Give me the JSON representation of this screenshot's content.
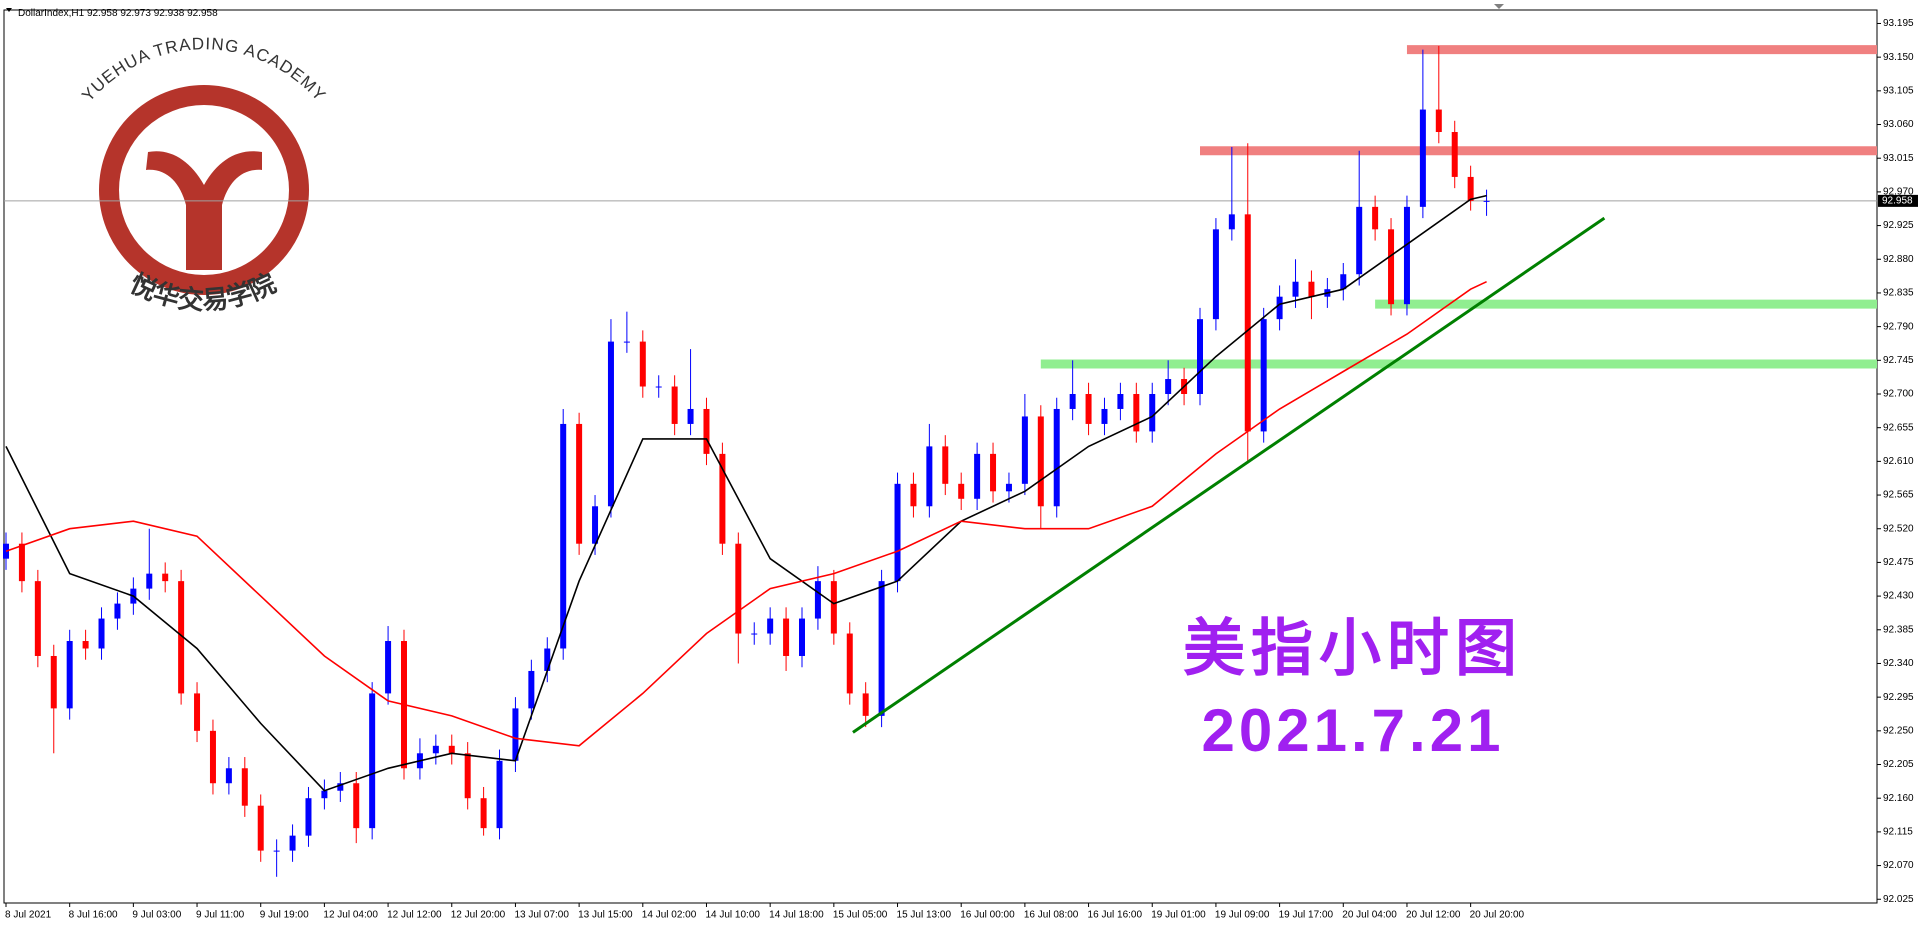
{
  "chart_data": {
    "type": "candlestick",
    "symbol": "DollarIndex,H1",
    "x": [
      "8 Jul 2021",
      null,
      null,
      null,
      "8 Jul 16:00",
      null,
      null,
      null,
      "9 Jul 03:00",
      null,
      null,
      null,
      "9 Jul 11:00",
      null,
      null,
      null,
      "9 Jul 19:00",
      null,
      null,
      null,
      "12 Jul 04:00",
      null,
      null,
      null,
      "12 Jul 12:00",
      null,
      null,
      null,
      "12 Jul 20:00",
      null,
      null,
      null,
      "13 Jul 07:00",
      null,
      null,
      null,
      "13 Jul 15:00",
      null,
      null,
      null,
      "14 Jul 02:00",
      null,
      null,
      null,
      "14 Jul 10:00",
      null,
      null,
      null,
      "14 Jul 18:00",
      null,
      null,
      null,
      "15 Jul 05:00",
      null,
      null,
      null,
      "15 Jul 13:00",
      null,
      null,
      null,
      "16 Jul 00:00",
      null,
      null,
      null,
      "16 Jul 08:00",
      null,
      null,
      null,
      "16 Jul 16:00",
      null,
      null,
      null,
      "19 Jul 01:00",
      null,
      null,
      null,
      "19 Jul 09:00",
      null,
      null,
      null,
      "19 Jul 17:00",
      null,
      null,
      null,
      "20 Jul 04:00",
      null,
      null,
      null,
      "20 Jul 12:00",
      null,
      null,
      null,
      "20 Jul 20:00",
      null
    ],
    "ohlc": [
      [
        92.48,
        92.515,
        92.465,
        92.5
      ],
      [
        92.5,
        92.515,
        92.435,
        92.45
      ],
      [
        92.45,
        92.465,
        92.335,
        92.35
      ],
      [
        92.35,
        92.365,
        92.22,
        92.28
      ],
      [
        92.28,
        92.385,
        92.265,
        92.37
      ],
      [
        92.37,
        92.385,
        92.345,
        92.36
      ],
      [
        92.36,
        92.415,
        92.345,
        92.4
      ],
      [
        92.4,
        92.435,
        92.385,
        92.42
      ],
      [
        92.42,
        92.455,
        92.405,
        92.44
      ],
      [
        92.44,
        92.52,
        92.425,
        92.46
      ],
      [
        92.46,
        92.475,
        92.435,
        92.45
      ],
      [
        92.45,
        92.465,
        92.285,
        92.3
      ],
      [
        92.3,
        92.315,
        92.235,
        92.25
      ],
      [
        92.25,
        92.265,
        92.165,
        92.18
      ],
      [
        92.18,
        92.215,
        92.165,
        92.2
      ],
      [
        92.2,
        92.215,
        92.135,
        92.15
      ],
      [
        92.15,
        92.165,
        92.075,
        92.09
      ],
      [
        92.09,
        92.105,
        92.055,
        92.09
      ],
      [
        92.09,
        92.125,
        92.075,
        92.11
      ],
      [
        92.11,
        92.175,
        92.095,
        92.16
      ],
      [
        92.16,
        92.185,
        92.145,
        92.17
      ],
      [
        92.17,
        92.195,
        92.155,
        92.18
      ],
      [
        92.18,
        92.195,
        92.1,
        92.12
      ],
      [
        92.12,
        92.315,
        92.105,
        92.3
      ],
      [
        92.3,
        92.39,
        92.285,
        92.37
      ],
      [
        92.37,
        92.385,
        92.185,
        92.2
      ],
      [
        92.2,
        92.24,
        92.185,
        92.22
      ],
      [
        92.22,
        92.245,
        92.205,
        92.23
      ],
      [
        92.23,
        92.245,
        92.205,
        92.22
      ],
      [
        92.22,
        92.235,
        92.145,
        92.16
      ],
      [
        92.16,
        92.175,
        92.11,
        92.12
      ],
      [
        92.12,
        92.225,
        92.105,
        92.21
      ],
      [
        92.21,
        92.295,
        92.195,
        92.28
      ],
      [
        92.28,
        92.345,
        92.265,
        92.33
      ],
      [
        92.33,
        92.375,
        92.315,
        92.36
      ],
      [
        92.36,
        92.68,
        92.345,
        92.66
      ],
      [
        92.66,
        92.675,
        92.485,
        92.5
      ],
      [
        92.5,
        92.565,
        92.485,
        92.55
      ],
      [
        92.55,
        92.8,
        92.535,
        92.77
      ],
      [
        92.77,
        92.81,
        92.755,
        92.77
      ],
      [
        92.77,
        92.785,
        92.695,
        92.71
      ],
      [
        92.71,
        92.725,
        92.695,
        92.71
      ],
      [
        92.71,
        92.725,
        92.645,
        92.66
      ],
      [
        92.66,
        92.76,
        92.645,
        92.68
      ],
      [
        92.68,
        92.695,
        92.605,
        92.62
      ],
      [
        92.62,
        92.635,
        92.485,
        92.5
      ],
      [
        92.5,
        92.515,
        92.34,
        92.38
      ],
      [
        92.38,
        92.395,
        92.365,
        92.38
      ],
      [
        92.38,
        92.415,
        92.365,
        92.4
      ],
      [
        92.4,
        92.415,
        92.33,
        92.35
      ],
      [
        92.35,
        92.415,
        92.335,
        92.4
      ],
      [
        92.4,
        92.47,
        92.385,
        92.45
      ],
      [
        92.45,
        92.465,
        92.365,
        92.38
      ],
      [
        92.38,
        92.395,
        92.285,
        92.3
      ],
      [
        92.3,
        92.315,
        92.255,
        92.27
      ],
      [
        92.27,
        92.465,
        92.255,
        92.45
      ],
      [
        92.45,
        92.595,
        92.435,
        92.58
      ],
      [
        92.58,
        92.595,
        92.535,
        92.55
      ],
      [
        92.55,
        92.66,
        92.535,
        92.63
      ],
      [
        92.63,
        92.645,
        92.565,
        92.58
      ],
      [
        92.58,
        92.595,
        92.545,
        92.56
      ],
      [
        92.56,
        92.635,
        92.545,
        92.62
      ],
      [
        92.62,
        92.635,
        92.555,
        92.57
      ],
      [
        92.57,
        92.595,
        92.555,
        92.58
      ],
      [
        92.58,
        92.7,
        92.565,
        92.67
      ],
      [
        92.67,
        92.685,
        92.52,
        92.55
      ],
      [
        92.55,
        92.695,
        92.535,
        92.68
      ],
      [
        92.68,
        92.745,
        92.665,
        92.7
      ],
      [
        92.7,
        92.715,
        92.645,
        92.66
      ],
      [
        92.66,
        92.695,
        92.645,
        92.68
      ],
      [
        92.68,
        92.715,
        92.665,
        92.7
      ],
      [
        92.7,
        92.715,
        92.635,
        92.65
      ],
      [
        92.65,
        92.715,
        92.635,
        92.7
      ],
      [
        92.7,
        92.745,
        92.685,
        92.72
      ],
      [
        92.72,
        92.735,
        92.685,
        92.7
      ],
      [
        92.7,
        92.815,
        92.685,
        92.8
      ],
      [
        92.8,
        92.935,
        92.785,
        92.92
      ],
      [
        92.92,
        93.03,
        92.905,
        92.94
      ],
      [
        92.94,
        93.035,
        92.61,
        92.65
      ],
      [
        92.65,
        92.815,
        92.635,
        92.8
      ],
      [
        92.8,
        92.845,
        92.785,
        92.83
      ],
      [
        92.83,
        92.88,
        92.815,
        92.85
      ],
      [
        92.85,
        92.865,
        92.8,
        92.83
      ],
      [
        92.83,
        92.855,
        92.815,
        92.84
      ],
      [
        92.84,
        92.875,
        92.825,
        92.86
      ],
      [
        92.86,
        93.025,
        92.845,
        92.95
      ],
      [
        92.95,
        92.965,
        92.905,
        92.92
      ],
      [
        92.92,
        92.935,
        92.805,
        92.82
      ],
      [
        92.82,
        92.965,
        92.805,
        92.95
      ],
      [
        92.95,
        93.16,
        92.935,
        93.08
      ],
      [
        93.08,
        93.165,
        93.035,
        93.05
      ],
      [
        93.05,
        93.065,
        92.975,
        92.99
      ],
      [
        92.99,
        93.005,
        92.945,
        92.958
      ],
      [
        92.958,
        92.973,
        92.938,
        92.958
      ]
    ],
    "up_color": "#0000ff",
    "down_color": "#ff0000",
    "ylim": [
      92.02,
      93.213
    ],
    "yticks": [
      92.025,
      {
        "value": 92.07,
        "label": "92.070"
      },
      92.115,
      {
        "value": 92.16,
        "label": "92.160"
      },
      92.205,
      {
        "value": 92.25,
        "label": "92.250"
      },
      92.295,
      {
        "value": 92.34,
        "label": "92.340"
      },
      92.385,
      {
        "value": 92.43,
        "label": "92.430"
      },
      92.475,
      {
        "value": 92.52,
        "label": "92.520"
      },
      92.565,
      {
        "value": 92.61,
        "label": "92.610"
      },
      92.655,
      {
        "value": 92.7,
        "label": "92.700"
      },
      92.745,
      {
        "value": 92.79,
        "label": "92.790"
      },
      92.835,
      {
        "value": 92.88,
        "label": "92.880"
      },
      92.925,
      {
        "value": 92.97,
        "label": "92.970"
      },
      93.015,
      {
        "value": 93.06,
        "label": "93.060"
      },
      93.105,
      {
        "value": 93.15,
        "label": "93.150"
      },
      93.195
    ],
    "lines": [
      {
        "color": "#000000",
        "x": [
          0,
          4,
          8,
          12,
          16,
          20,
          24,
          28,
          32,
          36,
          40,
          44,
          48,
          52,
          56,
          60,
          64,
          68,
          72,
          76,
          80,
          84,
          88,
          92,
          93
        ],
        "values": [
          92.63,
          92.46,
          92.43,
          92.36,
          92.26,
          92.17,
          92.2,
          92.22,
          92.21,
          92.45,
          92.64,
          92.64,
          92.48,
          92.42,
          92.45,
          92.53,
          92.57,
          92.63,
          92.67,
          92.75,
          92.82,
          92.84,
          92.9,
          92.96,
          92.965
        ]
      },
      {
        "color": "#ff0000",
        "x": [
          0,
          4,
          8,
          12,
          16,
          20,
          24,
          28,
          32,
          36,
          40,
          44,
          48,
          52,
          56,
          60,
          64,
          68,
          72,
          76,
          80,
          84,
          88,
          92,
          93
        ],
        "values": [
          92.49,
          92.52,
          92.53,
          92.51,
          92.43,
          92.35,
          92.29,
          92.27,
          92.24,
          92.23,
          92.3,
          92.38,
          92.44,
          92.46,
          92.49,
          92.53,
          92.52,
          92.52,
          92.55,
          92.62,
          92.68,
          92.73,
          92.78,
          92.84,
          92.85
        ]
      }
    ],
    "levels": [
      {
        "value": 93.16,
        "start": 88,
        "color": "#f08080"
      },
      {
        "value": 93.025,
        "start": 75,
        "color": "#f08080"
      },
      {
        "value": 92.82,
        "start": 86,
        "color": "#90ee90"
      },
      {
        "value": 92.74,
        "start": 65,
        "color": "#90ee90"
      }
    ],
    "trendline": {
      "x": [
        53.2,
        100.4
      ],
      "values": [
        92.248,
        92.935
      ],
      "color": "#008000"
    },
    "current_price_color": "#a0a0a0",
    "annotations": {
      "title": "美指小时图",
      "date": "2021.7.21",
      "color": "#a020f0"
    },
    "logo": {
      "text_en": "YUEHUA TRADING ACADEMY",
      "text_cn": "悦华交易学院",
      "color": "#b5342b"
    }
  }
}
